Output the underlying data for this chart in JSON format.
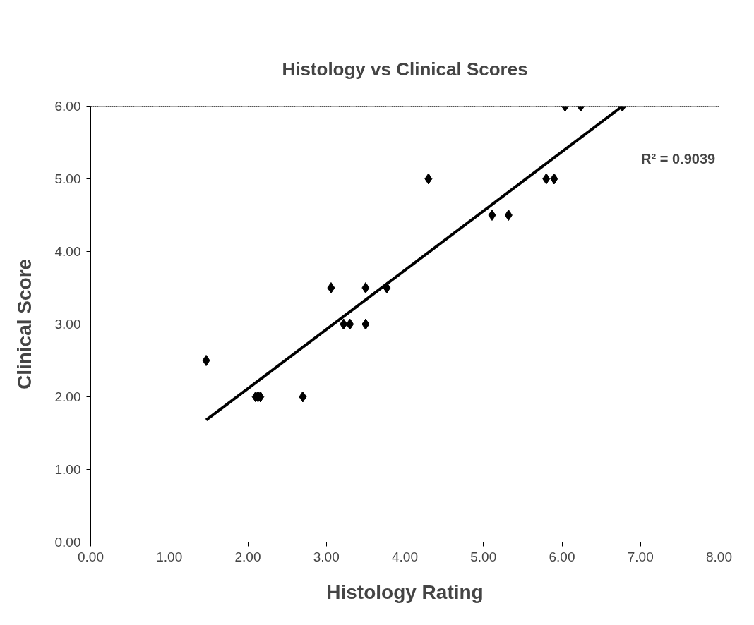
{
  "chart_data": {
    "type": "scatter",
    "title": "Histology vs Clinical Scores",
    "xlabel": "Histology Rating",
    "ylabel": "Clinical Score",
    "xlim": [
      0,
      8
    ],
    "ylim": [
      0,
      6
    ],
    "xticks": [
      {
        "value": 0,
        "label": "0.00"
      },
      {
        "value": 1,
        "label": "1.00"
      },
      {
        "value": 2,
        "label": "2.00"
      },
      {
        "value": 3,
        "label": "3.00"
      },
      {
        "value": 4,
        "label": "4.00"
      },
      {
        "value": 5,
        "label": "5.00"
      },
      {
        "value": 6,
        "label": "6.00"
      },
      {
        "value": 7,
        "label": "7.00"
      },
      {
        "value": 8,
        "label": "8.00"
      }
    ],
    "yticks": [
      {
        "value": 0,
        "label": "0.00"
      },
      {
        "value": 1,
        "label": "1.00"
      },
      {
        "value": 2,
        "label": "2.00"
      },
      {
        "value": 3,
        "label": "3.00"
      },
      {
        "value": 4,
        "label": "4.00"
      },
      {
        "value": 5,
        "label": "5.00"
      },
      {
        "value": 6,
        "label": "6.00"
      }
    ],
    "grid": false,
    "series": [
      {
        "marker": "diamond",
        "color": "#000000",
        "x": [
          1.47,
          2.1,
          2.13,
          2.16,
          2.7,
          3.06,
          3.22,
          3.3,
          3.5,
          3.5,
          3.77,
          4.3,
          5.11,
          5.32,
          5.8,
          5.9,
          6.04,
          6.24,
          6.77
        ],
        "values": [
          2.5,
          2.0,
          2.0,
          2.0,
          2.0,
          3.5,
          3.0,
          3.0,
          3.5,
          3.0,
          3.5,
          5.0,
          4.5,
          4.5,
          5.0,
          5.0,
          6.0,
          6.0,
          6.0
        ]
      },
      {
        "type": "line",
        "color": "#000000",
        "line_style": "solid",
        "x": [
          1.47,
          6.77
        ],
        "values": [
          1.68,
          6.0
        ]
      }
    ],
    "annotations": [
      "R² = 0.9039"
    ]
  }
}
